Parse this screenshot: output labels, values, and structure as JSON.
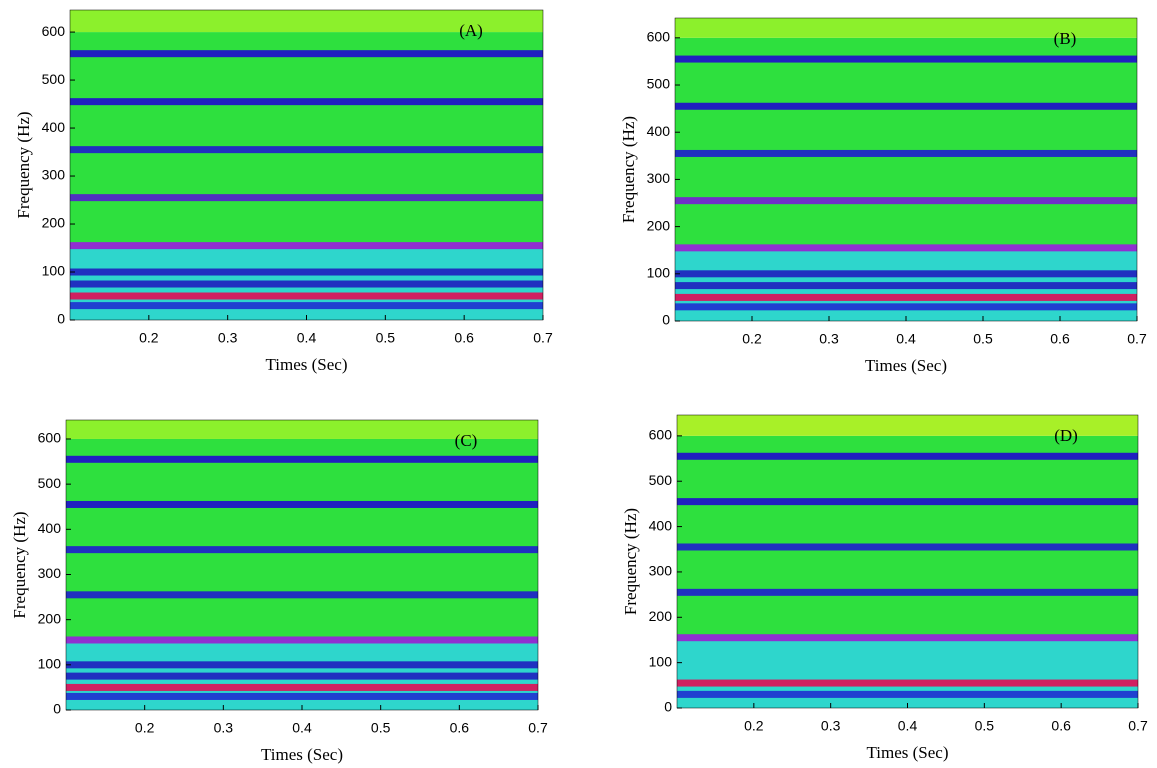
{
  "chart_data": [
    {
      "type": "spectrogram",
      "title": "(A)",
      "xlabel": "Times (Sec)",
      "ylabel": "Frequency (Hz)",
      "xlim": [
        0.1,
        0.7
      ],
      "xticks": [
        0.2,
        0.3,
        0.4,
        0.5,
        0.6,
        0.7
      ],
      "ylim": [
        0,
        646
      ],
      "yticks": [
        0,
        100,
        200,
        300,
        400,
        500,
        600
      ],
      "regions": [
        {
          "from": 0,
          "to": 150,
          "color": "#2ed6cc"
        },
        {
          "from": 150,
          "to": 600,
          "color": "#2ee03e"
        },
        {
          "from": 600,
          "to": 646,
          "color": "#8cf02c"
        }
      ],
      "bands": [
        {
          "frequency": 30,
          "color": "#2040d0"
        },
        {
          "frequency": 50,
          "color": "#d02060"
        },
        {
          "frequency": 75,
          "color": "#2030c0"
        },
        {
          "frequency": 100,
          "color": "#2030c0"
        },
        {
          "frequency": 155,
          "color": "#9030d0"
        },
        {
          "frequency": 255,
          "color": "#5030c0"
        },
        {
          "frequency": 355,
          "color": "#2030c0"
        },
        {
          "frequency": 455,
          "color": "#2020c0"
        },
        {
          "frequency": 555,
          "color": "#2020c0"
        }
      ]
    },
    {
      "type": "spectrogram",
      "title": "(B)",
      "xlabel": "Times (Sec)",
      "ylabel": "Frequency (Hz)",
      "xlim": [
        0.1,
        0.7
      ],
      "xticks": [
        0.2,
        0.3,
        0.4,
        0.5,
        0.6,
        0.7
      ],
      "ylim": [
        0,
        642
      ],
      "yticks": [
        0,
        100,
        200,
        300,
        400,
        500,
        600
      ],
      "regions": [
        {
          "from": 0,
          "to": 150,
          "color": "#2ed6cc"
        },
        {
          "from": 150,
          "to": 600,
          "color": "#2ee03e"
        },
        {
          "from": 600,
          "to": 642,
          "color": "#8cf02c"
        }
      ],
      "bands": [
        {
          "frequency": 30,
          "color": "#2040d0"
        },
        {
          "frequency": 50,
          "color": "#d02060"
        },
        {
          "frequency": 75,
          "color": "#2030c0"
        },
        {
          "frequency": 100,
          "color": "#2030c0"
        },
        {
          "frequency": 155,
          "color": "#9030d0"
        },
        {
          "frequency": 255,
          "color": "#7030c8"
        },
        {
          "frequency": 355,
          "color": "#2030c0"
        },
        {
          "frequency": 455,
          "color": "#2020c0"
        },
        {
          "frequency": 555,
          "color": "#2020c0"
        }
      ]
    },
    {
      "type": "spectrogram",
      "title": "(C)",
      "xlabel": "Times (Sec)",
      "ylabel": "Frequency (Hz)",
      "xlim": [
        0.1,
        0.7
      ],
      "xticks": [
        0.2,
        0.3,
        0.4,
        0.5,
        0.6,
        0.7
      ],
      "ylim": [
        0,
        642
      ],
      "yticks": [
        0,
        100,
        200,
        300,
        400,
        500,
        600
      ],
      "regions": [
        {
          "from": 0,
          "to": 150,
          "color": "#2ed6cc"
        },
        {
          "from": 150,
          "to": 600,
          "color": "#2ee03e"
        },
        {
          "from": 600,
          "to": 642,
          "color": "#8cf02c"
        }
      ],
      "bands": [
        {
          "frequency": 30,
          "color": "#2040d0"
        },
        {
          "frequency": 50,
          "color": "#d02060"
        },
        {
          "frequency": 75,
          "color": "#2030c0"
        },
        {
          "frequency": 100,
          "color": "#2030c0"
        },
        {
          "frequency": 155,
          "color": "#9030d0"
        },
        {
          "frequency": 255,
          "color": "#2030c0"
        },
        {
          "frequency": 355,
          "color": "#2030c0"
        },
        {
          "frequency": 455,
          "color": "#2020c0"
        },
        {
          "frequency": 555,
          "color": "#2020c0"
        }
      ]
    },
    {
      "type": "spectrogram",
      "title": "(D)",
      "xlabel": "Times (Sec)",
      "ylabel": "Frequency (Hz)",
      "xlim": [
        0.1,
        0.7
      ],
      "xticks": [
        0.2,
        0.3,
        0.4,
        0.5,
        0.6,
        0.7
      ],
      "ylim": [
        0,
        646
      ],
      "yticks": [
        0,
        100,
        200,
        300,
        400,
        500,
        600
      ],
      "regions": [
        {
          "from": 0,
          "to": 150,
          "color": "#2ed6cc"
        },
        {
          "from": 150,
          "to": 600,
          "color": "#2ee03e"
        },
        {
          "from": 600,
          "to": 646,
          "color": "#a8f028"
        }
      ],
      "bands": [
        {
          "frequency": 30,
          "color": "#2040d0"
        },
        {
          "frequency": 55,
          "color": "#d02060"
        },
        {
          "frequency": 155,
          "color": "#9030d0"
        },
        {
          "frequency": 255,
          "color": "#2030c0"
        },
        {
          "frequency": 355,
          "color": "#2030c0"
        },
        {
          "frequency": 455,
          "color": "#2020c0"
        },
        {
          "frequency": 555,
          "color": "#2020c0"
        }
      ]
    }
  ]
}
